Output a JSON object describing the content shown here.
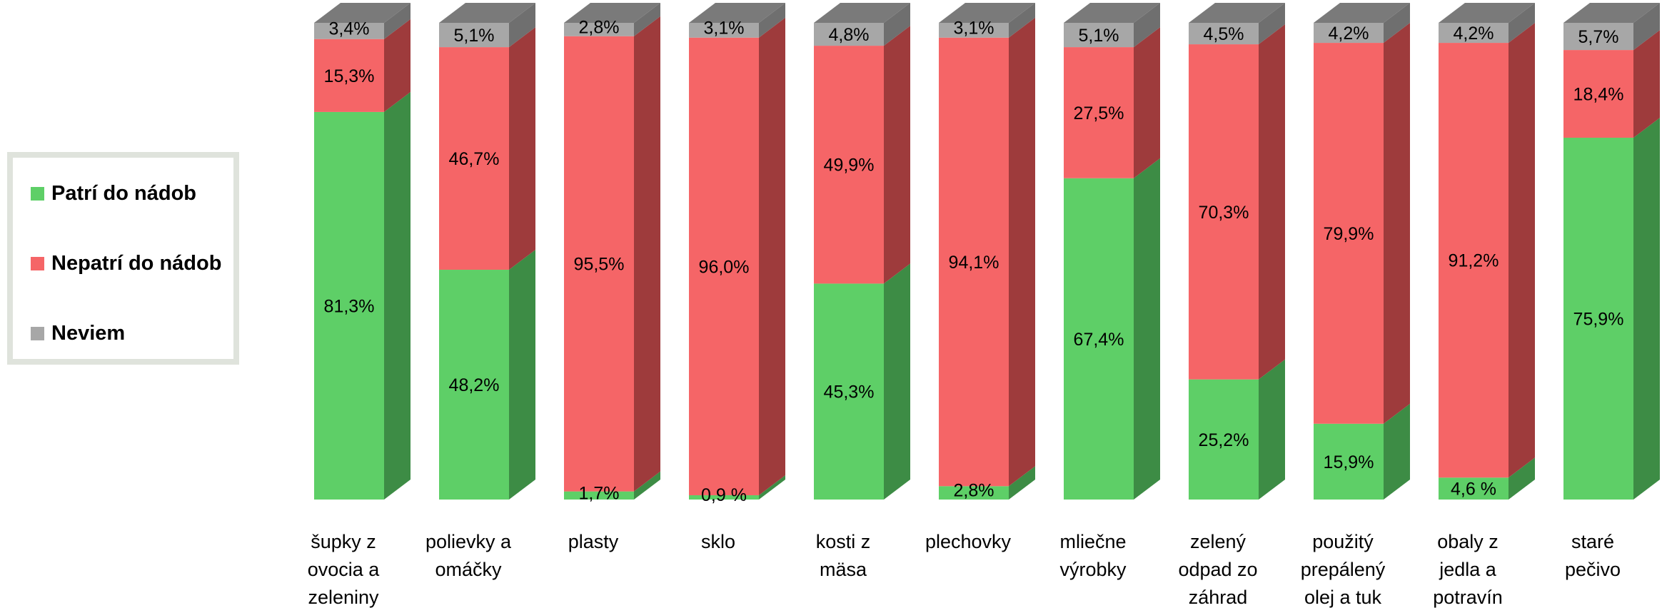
{
  "chart_data": {
    "type": "bar",
    "stacked": true,
    "percent_stacked": true,
    "style": "3d-columns",
    "grid": false,
    "legend_position": "left",
    "categories": [
      [
        "šupky z",
        "ovocia a",
        "zeleniny"
      ],
      [
        "polievky a",
        "omáčky"
      ],
      [
        "plasty"
      ],
      [
        "sklo"
      ],
      [
        "kosti z",
        "mäsa"
      ],
      [
        "plechovky"
      ],
      [
        "mliečne",
        "výrobky"
      ],
      [
        "zelený",
        "odpad zo",
        "záhrad"
      ],
      [
        "použitý",
        "prepálený",
        "olej a tuk"
      ],
      [
        "obaly z",
        "jedla a",
        "potravín"
      ],
      [
        "staré",
        "pečivo"
      ]
    ],
    "series": [
      {
        "name": "Patrí do nádob",
        "color": "#5ecf67",
        "side_color": "#3d8c45",
        "values": [
          81.3,
          48.2,
          1.7,
          0.9,
          45.3,
          2.8,
          67.4,
          25.2,
          15.9,
          4.6,
          75.9
        ],
        "labels": [
          "81,3%",
          "48,2%",
          "1,7%",
          "0,9 %",
          "45,3%",
          "2,8%",
          "67,4%",
          "25,2%",
          "15,9%",
          "4,6 %",
          "75,9%"
        ]
      },
      {
        "name": "Nepatrí do nádob",
        "color": "#f56567",
        "side_color": "#9e3b3c",
        "values": [
          15.3,
          46.7,
          95.5,
          96.0,
          49.9,
          94.1,
          27.5,
          70.3,
          79.9,
          91.2,
          18.4
        ],
        "labels": [
          "15,3%",
          "46,7%",
          "95,5%",
          "96,0%",
          "49,9%",
          "94,1%",
          "27,5%",
          "70,3%",
          "79,9%",
          "91,2%",
          "18,4%"
        ]
      },
      {
        "name": "Neviem",
        "color": "#a7a7a7",
        "side_color": "#6f6f6f",
        "values": [
          3.4,
          5.1,
          2.8,
          3.1,
          4.8,
          3.1,
          5.1,
          4.5,
          4.2,
          4.2,
          5.7
        ],
        "labels": [
          "3,4%",
          "5,1%",
          "2,8%",
          "3,1%",
          "4,8%",
          "3,1%",
          "5,1%",
          "4,5%",
          "4,2%",
          "4,2%",
          "5,7%"
        ]
      }
    ]
  }
}
